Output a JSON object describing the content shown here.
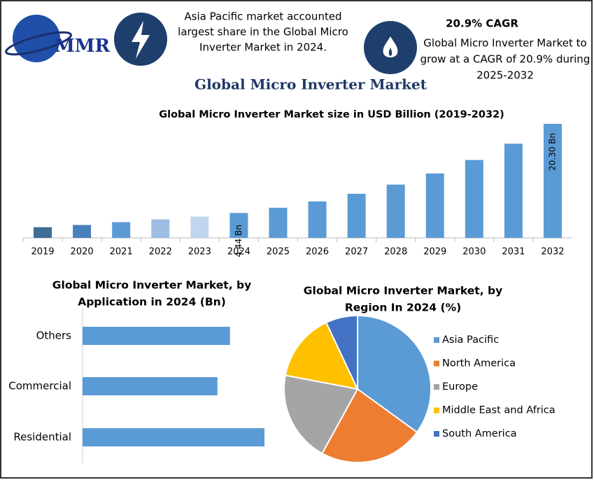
{
  "header": {
    "logo": "MMR",
    "insight_1": [
      "Asia Pacific market accounted",
      "largest share in the Global Micro",
      "Inverter Market in 2024."
    ],
    "insight_2_title": "20.9% CAGR",
    "insight_2": [
      "Global Micro Inverter Market to",
      "grow at a CAGR of 20.9% during",
      "2025-2032"
    ],
    "title": "Global Micro Inverter Market"
  },
  "chart_data": [
    {
      "type": "bar",
      "title": "Global Micro Inverter Market size in USD Billion (2019-2032)",
      "categories": [
        "2019",
        "2020",
        "2021",
        "2022",
        "2023",
        "2024",
        "2025",
        "2026",
        "2027",
        "2028",
        "2029",
        "2030",
        "2031",
        "2032"
      ],
      "values": [
        1.9,
        2.3,
        2.8,
        3.3,
        3.8,
        4.44,
        5.37,
        6.49,
        7.85,
        9.49,
        11.47,
        13.87,
        16.77,
        20.3
      ],
      "value_labels": [
        null,
        null,
        null,
        null,
        null,
        "4.44 Bn",
        null,
        null,
        null,
        null,
        null,
        null,
        null,
        "20.30 Bn"
      ],
      "colors": [
        "#3e6d98",
        "#4a80ba",
        "#5b9bd5",
        "#9dbde3",
        "#c1d6ee",
        "#5b9bd5",
        "#5b9bd5",
        "#5b9bd5",
        "#5b9bd5",
        "#5b9bd5",
        "#5b9bd5",
        "#5b9bd5",
        "#5b9bd5",
        "#5b9bd5"
      ]
    },
    {
      "type": "hbar",
      "title": [
        "Global Micro Inverter Market, by",
        "Application in 2024 (Bn)"
      ],
      "categories": [
        "Others",
        "Commercial",
        "Residential"
      ],
      "values": [
        1.41,
        1.29,
        1.74
      ],
      "color": "#5b9bd5"
    },
    {
      "type": "pie",
      "title": [
        "Global Micro Inverter Market, by",
        "Region In 2024 (%)"
      ],
      "categories": [
        "Asia Pacific",
        "North America",
        "Europe",
        "Middle East and Africa",
        "South America"
      ],
      "values": [
        35,
        23,
        20,
        15,
        7
      ],
      "colors": [
        "#5b9bd5",
        "#ed7d31",
        "#a5a5a5",
        "#ffc000",
        "#4472c4"
      ]
    }
  ]
}
